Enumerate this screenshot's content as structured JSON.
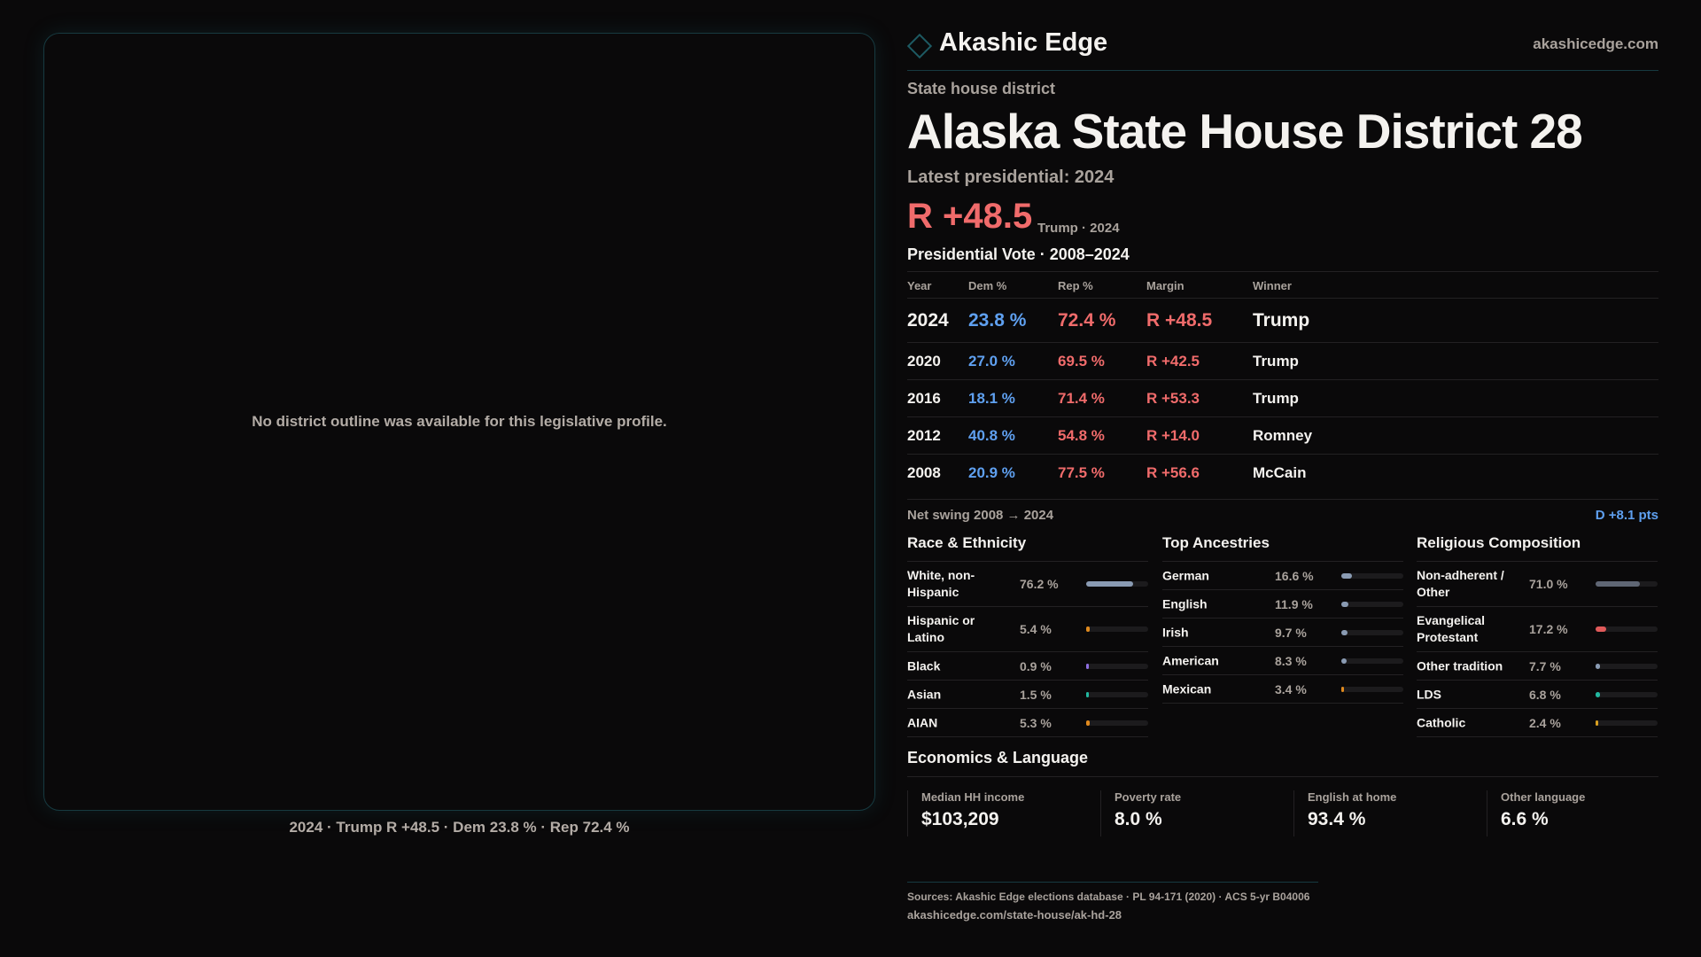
{
  "map": {
    "empty_message": "No district outline was available for this legislative profile.",
    "caption": "2024 · Trump R +48.5 · Dem 23.8 % · Rep 72.4 %"
  },
  "header": {
    "brand": "Akashic Edge",
    "site": "akashicedge.com",
    "logo_icon": "diamond-outline-icon"
  },
  "profile": {
    "kind": "State house district",
    "title": "Alaska State House District 28",
    "latest": "Latest presidential: 2024",
    "margin": "R +48.5",
    "margin_sub": "Trump · 2024"
  },
  "colors": {
    "dem": "#5fa0f0",
    "rep": "#f06b6b",
    "accent": "#1d5a63"
  },
  "pres": {
    "title": "Presidential Vote · 2008–2024",
    "headers": [
      "Year",
      "Dem %",
      "Rep %",
      "Margin",
      "Winner"
    ],
    "rows": [
      {
        "year": "2024",
        "dem": "23.8 %",
        "rep": "72.4 %",
        "margin": "R +48.5",
        "winner": "Trump"
      },
      {
        "year": "2020",
        "dem": "27.0 %",
        "rep": "69.5 %",
        "margin": "R +42.5",
        "winner": "Trump"
      },
      {
        "year": "2016",
        "dem": "18.1 %",
        "rep": "71.4 %",
        "margin": "R +53.3",
        "winner": "Trump"
      },
      {
        "year": "2012",
        "dem": "40.8 %",
        "rep": "54.8 %",
        "margin": "R +14.0",
        "winner": "Romney"
      },
      {
        "year": "2008",
        "dem": "20.9 %",
        "rep": "77.5 %",
        "margin": "R +56.6",
        "winner": "McCain"
      }
    ],
    "swing_label": "Net swing 2008 → 2024",
    "swing_value": "D +8.1 pts"
  },
  "demographics": [
    {
      "title": "Race & Ethnicity",
      "items": [
        {
          "label": "White, non-Hispanic",
          "pct": "76.2 %",
          "value": 76.2,
          "color": "#8a9bb3"
        },
        {
          "label": "Hispanic or Latino",
          "pct": "5.4 %",
          "value": 5.4,
          "color": "#e08a1e"
        },
        {
          "label": "Black",
          "pct": "0.9 %",
          "value": 0.9,
          "color": "#8e6ee0"
        },
        {
          "label": "Asian",
          "pct": "1.5 %",
          "value": 1.5,
          "color": "#22b8a0"
        },
        {
          "label": "AIAN",
          "pct": "5.3 %",
          "value": 5.3,
          "color": "#e08a1e"
        }
      ]
    },
    {
      "title": "Top Ancestries",
      "items": [
        {
          "label": "German",
          "pct": "16.6 %",
          "value": 16.6,
          "color": "#8a9bb3"
        },
        {
          "label": "English",
          "pct": "11.9 %",
          "value": 11.9,
          "color": "#8a9bb3"
        },
        {
          "label": "Irish",
          "pct": "9.7 %",
          "value": 9.7,
          "color": "#8a9bb3"
        },
        {
          "label": "American",
          "pct": "8.3 %",
          "value": 8.3,
          "color": "#8a9bb3"
        },
        {
          "label": "Mexican",
          "pct": "3.4 %",
          "value": 3.4,
          "color": "#e08a1e"
        }
      ]
    },
    {
      "title": "Religious Composition",
      "items": [
        {
          "label": "Non-adherent / Other",
          "pct": "71.0 %",
          "value": 71.0,
          "color": "#5f6674"
        },
        {
          "label": "Evangelical Protestant",
          "pct": "17.2 %",
          "value": 17.2,
          "color": "#e05a5a"
        },
        {
          "label": "Other tradition",
          "pct": "7.7 %",
          "value": 7.7,
          "color": "#8a9bb3"
        },
        {
          "label": "LDS",
          "pct": "6.8 %",
          "value": 6.8,
          "color": "#22b8a0"
        },
        {
          "label": "Catholic",
          "pct": "2.4 %",
          "value": 2.4,
          "color": "#d9a020"
        }
      ]
    }
  ],
  "economics": {
    "title": "Economics & Language",
    "cards": [
      {
        "label": "Median HH income",
        "value": "$103,209"
      },
      {
        "label": "Poverty rate",
        "value": "8.0 %"
      },
      {
        "label": "English at home",
        "value": "93.4 %"
      },
      {
        "label": "Other language",
        "value": "6.6 %"
      }
    ]
  },
  "footer": {
    "sources": "Sources: Akashic Edge elections database · PL 94-171 (2020) · ACS 5-yr B04006",
    "url": "akashicedge.com/state-house/ak-hd-28"
  }
}
